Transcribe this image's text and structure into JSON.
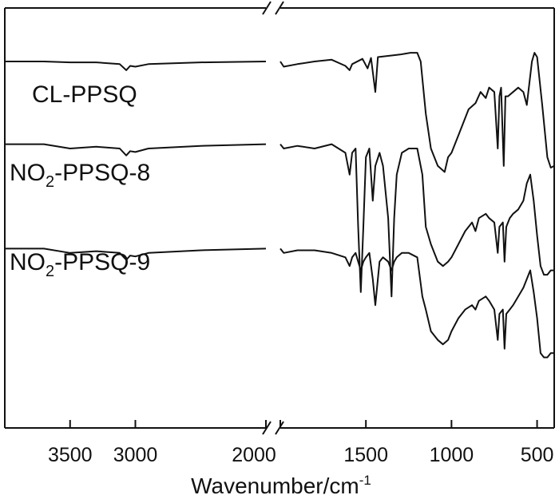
{
  "chart_data": {
    "type": "line",
    "title": "",
    "xlabel": "Wavenumber/cm",
    "xlabel_superscript": "-1",
    "ylabel": "",
    "x_direction": "decreasing",
    "x_axis_break": [
      2000,
      2000
    ],
    "xlim_left_segment": [
      4000,
      2000
    ],
    "xlim_right_segment": [
      2000,
      400
    ],
    "x_ticks": [
      3500,
      3000,
      2000,
      1500,
      1000,
      500
    ],
    "grid": false,
    "legend": "none (inline labels)",
    "y_units": "arbitrary (transmittance, curves offset vertically)",
    "series": [
      {
        "name": "CL-PPSQ",
        "label_parts": {
          "main": "CL-PPSQ",
          "sub": "",
          "rest": ""
        },
        "points": [
          [
            4000,
            0.0
          ],
          [
            3700,
            0.0
          ],
          [
            3500,
            -0.01
          ],
          [
            3300,
            -0.01
          ],
          [
            3120,
            -0.03
          ],
          [
            3070,
            -0.1
          ],
          [
            3040,
            -0.05
          ],
          [
            3000,
            -0.06
          ],
          [
            2900,
            -0.03
          ],
          [
            2500,
            -0.01
          ],
          [
            2000,
            0.0
          ],
          [
            1980,
            -0.06
          ],
          [
            1900,
            -0.03
          ],
          [
            1800,
            0.0
          ],
          [
            1700,
            0.02
          ],
          [
            1620,
            -0.05
          ],
          [
            1595,
            -0.1
          ],
          [
            1580,
            -0.03
          ],
          [
            1520,
            0.03
          ],
          [
            1490,
            -0.08
          ],
          [
            1470,
            0.04
          ],
          [
            1445,
            -0.35
          ],
          [
            1430,
            0.05
          ],
          [
            1300,
            0.08
          ],
          [
            1240,
            0.1
          ],
          [
            1200,
            0.1
          ],
          [
            1180,
            0.0
          ],
          [
            1150,
            -0.6
          ],
          [
            1120,
            -1.0
          ],
          [
            1080,
            -1.2
          ],
          [
            1040,
            -1.27
          ],
          [
            1020,
            -1.1
          ],
          [
            1000,
            -1.05
          ],
          [
            960,
            -0.85
          ],
          [
            900,
            -0.55
          ],
          [
            860,
            -0.48
          ],
          [
            830,
            -0.35
          ],
          [
            800,
            -0.42
          ],
          [
            780,
            -0.3
          ],
          [
            750,
            -0.35
          ],
          [
            730,
            -1.0
          ],
          [
            720,
            -0.4
          ],
          [
            710,
            -0.3
          ],
          [
            695,
            -1.2
          ],
          [
            685,
            -0.4
          ],
          [
            670,
            -0.4
          ],
          [
            640,
            -0.35
          ],
          [
            610,
            -0.3
          ],
          [
            580,
            -0.35
          ],
          [
            560,
            -0.5
          ],
          [
            530,
            0.0
          ],
          [
            515,
            0.1
          ],
          [
            500,
            0.05
          ],
          [
            470,
            -0.5
          ],
          [
            440,
            -1.1
          ],
          [
            420,
            -1.22
          ],
          [
            400,
            -1.2
          ]
        ]
      },
      {
        "name": "NO2-PPSQ-8",
        "label_parts": {
          "main": "NO",
          "sub": "2",
          "rest": "-PPSQ-8"
        },
        "points": [
          [
            4000,
            -0.95
          ],
          [
            3700,
            -0.95
          ],
          [
            3500,
            -1.0
          ],
          [
            3300,
            -0.98
          ],
          [
            3120,
            -1.0
          ],
          [
            3070,
            -1.08
          ],
          [
            3040,
            -1.03
          ],
          [
            3000,
            -1.04
          ],
          [
            2900,
            -1.0
          ],
          [
            2500,
            -0.97
          ],
          [
            2000,
            -0.95
          ],
          [
            1980,
            -1.0
          ],
          [
            1900,
            -0.97
          ],
          [
            1800,
            -1.0
          ],
          [
            1700,
            -0.95
          ],
          [
            1620,
            -1.05
          ],
          [
            1595,
            -1.3
          ],
          [
            1580,
            -1.05
          ],
          [
            1560,
            -1.0
          ],
          [
            1545,
            -1.9
          ],
          [
            1530,
            -2.65
          ],
          [
            1515,
            -1.9
          ],
          [
            1500,
            -1.1
          ],
          [
            1480,
            -1.0
          ],
          [
            1460,
            -1.6
          ],
          [
            1445,
            -1.2
          ],
          [
            1420,
            -1.05
          ],
          [
            1400,
            -1.2
          ],
          [
            1370,
            -1.8
          ],
          [
            1350,
            -2.7
          ],
          [
            1335,
            -1.8
          ],
          [
            1320,
            -1.3
          ],
          [
            1290,
            -1.05
          ],
          [
            1250,
            -1.0
          ],
          [
            1200,
            -1.0
          ],
          [
            1170,
            -1.3
          ],
          [
            1150,
            -1.9
          ],
          [
            1120,
            -2.1
          ],
          [
            1080,
            -2.3
          ],
          [
            1050,
            -2.35
          ],
          [
            1020,
            -2.3
          ],
          [
            1000,
            -2.25
          ],
          [
            960,
            -2.1
          ],
          [
            920,
            -1.95
          ],
          [
            880,
            -1.85
          ],
          [
            860,
            -1.95
          ],
          [
            840,
            -1.8
          ],
          [
            800,
            -1.75
          ],
          [
            780,
            -1.8
          ],
          [
            750,
            -1.85
          ],
          [
            730,
            -2.2
          ],
          [
            720,
            -1.9
          ],
          [
            700,
            -1.85
          ],
          [
            690,
            -2.3
          ],
          [
            680,
            -1.9
          ],
          [
            660,
            -1.8
          ],
          [
            640,
            -1.75
          ],
          [
            610,
            -1.7
          ],
          [
            580,
            -1.6
          ],
          [
            560,
            -1.4
          ],
          [
            540,
            -1.3
          ],
          [
            520,
            -1.6
          ],
          [
            500,
            -2.0
          ],
          [
            480,
            -2.35
          ],
          [
            460,
            -2.45
          ],
          [
            440,
            -2.45
          ],
          [
            420,
            -2.4
          ],
          [
            400,
            -2.4
          ]
        ]
      },
      {
        "name": "NO2-PPSQ-9",
        "label_parts": {
          "main": "NO",
          "sub": "2",
          "rest": "-PPSQ-9"
        },
        "points": [
          [
            4000,
            -2.15
          ],
          [
            3700,
            -2.15
          ],
          [
            3500,
            -2.2
          ],
          [
            3300,
            -2.18
          ],
          [
            3120,
            -2.2
          ],
          [
            3070,
            -2.28
          ],
          [
            3040,
            -2.23
          ],
          [
            3000,
            -2.24
          ],
          [
            2900,
            -2.2
          ],
          [
            2500,
            -2.17
          ],
          [
            2000,
            -2.15
          ],
          [
            1980,
            -2.2
          ],
          [
            1900,
            -2.17
          ],
          [
            1800,
            -2.17
          ],
          [
            1700,
            -2.2
          ],
          [
            1620,
            -2.25
          ],
          [
            1595,
            -2.35
          ],
          [
            1580,
            -2.25
          ],
          [
            1560,
            -2.2
          ],
          [
            1545,
            -2.3
          ],
          [
            1530,
            -2.4
          ],
          [
            1515,
            -2.3
          ],
          [
            1500,
            -2.25
          ],
          [
            1480,
            -2.2
          ],
          [
            1460,
            -2.5
          ],
          [
            1445,
            -2.8
          ],
          [
            1420,
            -2.3
          ],
          [
            1400,
            -2.25
          ],
          [
            1370,
            -2.3
          ],
          [
            1350,
            -2.4
          ],
          [
            1335,
            -2.3
          ],
          [
            1320,
            -2.25
          ],
          [
            1290,
            -2.2
          ],
          [
            1250,
            -2.2
          ],
          [
            1200,
            -2.25
          ],
          [
            1170,
            -2.7
          ],
          [
            1150,
            -2.85
          ],
          [
            1120,
            -3.1
          ],
          [
            1080,
            -3.2
          ],
          [
            1050,
            -3.25
          ],
          [
            1020,
            -3.2
          ],
          [
            1000,
            -3.1
          ],
          [
            960,
            -2.95
          ],
          [
            920,
            -2.85
          ],
          [
            880,
            -2.8
          ],
          [
            860,
            -2.85
          ],
          [
            840,
            -2.75
          ],
          [
            800,
            -2.7
          ],
          [
            780,
            -2.75
          ],
          [
            750,
            -2.85
          ],
          [
            730,
            -3.2
          ],
          [
            720,
            -2.9
          ],
          [
            700,
            -2.85
          ],
          [
            690,
            -3.3
          ],
          [
            680,
            -2.9
          ],
          [
            660,
            -2.85
          ],
          [
            640,
            -2.8
          ],
          [
            610,
            -2.7
          ],
          [
            580,
            -2.6
          ],
          [
            560,
            -2.5
          ],
          [
            540,
            -2.4
          ],
          [
            520,
            -2.65
          ],
          [
            500,
            -2.95
          ],
          [
            480,
            -3.35
          ],
          [
            460,
            -3.4
          ],
          [
            440,
            -3.4
          ],
          [
            420,
            -3.35
          ],
          [
            400,
            -3.35
          ]
        ]
      }
    ]
  }
}
